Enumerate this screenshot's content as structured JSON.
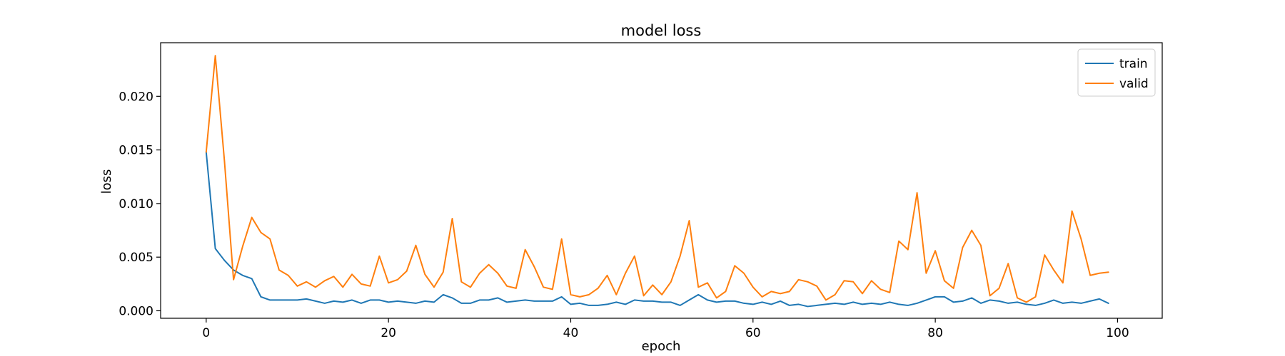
{
  "chart_data": {
    "type": "line",
    "title": "model loss",
    "xlabel": "epoch",
    "ylabel": "loss",
    "xlim": [
      -5,
      104.9
    ],
    "ylim": [
      -0.0007,
      0.025
    ],
    "xticks": [
      0,
      20,
      40,
      60,
      80,
      100
    ],
    "yticks": [
      0.0,
      0.005,
      0.01,
      0.015,
      0.02
    ],
    "xtick_labels": [
      "0",
      "20",
      "40",
      "60",
      "80",
      "100"
    ],
    "ytick_labels": [
      "0.000",
      "0.005",
      "0.010",
      "0.015",
      "0.020"
    ],
    "grid": false,
    "legend": "top-right",
    "x": [
      0,
      1,
      2,
      3,
      4,
      5,
      6,
      7,
      8,
      9,
      10,
      11,
      12,
      13,
      14,
      15,
      16,
      17,
      18,
      19,
      20,
      21,
      22,
      23,
      24,
      25,
      26,
      27,
      28,
      29,
      30,
      31,
      32,
      33,
      34,
      35,
      36,
      37,
      38,
      39,
      40,
      41,
      42,
      43,
      44,
      45,
      46,
      47,
      48,
      49,
      50,
      51,
      52,
      53,
      54,
      55,
      56,
      57,
      58,
      59,
      60,
      61,
      62,
      63,
      64,
      65,
      66,
      67,
      68,
      69,
      70,
      71,
      72,
      73,
      74,
      75,
      76,
      77,
      78,
      79,
      80,
      81,
      82,
      83,
      84,
      85,
      86,
      87,
      88,
      89,
      90,
      91,
      92,
      93,
      94,
      95,
      96,
      97,
      98,
      99
    ],
    "series": [
      {
        "name": "train",
        "color": "#1f77b4",
        "values": [
          0.0148,
          0.0058,
          0.0047,
          0.0038,
          0.0033,
          0.003,
          0.0013,
          0.001,
          0.001,
          0.001,
          0.001,
          0.0011,
          0.0009,
          0.0007,
          0.0009,
          0.0008,
          0.001,
          0.0007,
          0.001,
          0.001,
          0.0008,
          0.0009,
          0.0008,
          0.0007,
          0.0009,
          0.0008,
          0.0015,
          0.0012,
          0.0007,
          0.0007,
          0.001,
          0.001,
          0.0012,
          0.0008,
          0.0009,
          0.001,
          0.0009,
          0.0009,
          0.0009,
          0.0013,
          0.0006,
          0.0007,
          0.0005,
          0.0005,
          0.0006,
          0.0008,
          0.0006,
          0.001,
          0.0009,
          0.0009,
          0.0008,
          0.0008,
          0.0005,
          0.001,
          0.0015,
          0.001,
          0.0008,
          0.0009,
          0.0009,
          0.0007,
          0.0006,
          0.0008,
          0.0006,
          0.0009,
          0.0005,
          0.0006,
          0.0004,
          0.0005,
          0.0006,
          0.0007,
          0.0006,
          0.0008,
          0.0006,
          0.0007,
          0.0006,
          0.0008,
          0.0006,
          0.0005,
          0.0007,
          0.001,
          0.0013,
          0.0013,
          0.0008,
          0.0009,
          0.0012,
          0.0007,
          0.001,
          0.0009,
          0.0007,
          0.0008,
          0.0006,
          0.0005,
          0.0007,
          0.001,
          0.0007,
          0.0008,
          0.0007,
          0.0009,
          0.0011,
          0.0007
        ]
      },
      {
        "name": "valid",
        "color": "#ff7f0e",
        "values": [
          0.0148,
          0.0238,
          0.014,
          0.0029,
          0.006,
          0.0087,
          0.0073,
          0.0067,
          0.0038,
          0.0033,
          0.0023,
          0.0027,
          0.0022,
          0.0028,
          0.0032,
          0.0022,
          0.0034,
          0.0025,
          0.0023,
          0.0051,
          0.0026,
          0.0029,
          0.0037,
          0.0061,
          0.0034,
          0.0022,
          0.0036,
          0.0086,
          0.0027,
          0.0022,
          0.0035,
          0.0043,
          0.0035,
          0.0023,
          0.0021,
          0.0057,
          0.0041,
          0.0022,
          0.002,
          0.0067,
          0.0015,
          0.0013,
          0.0015,
          0.0021,
          0.0033,
          0.0015,
          0.0035,
          0.0051,
          0.0014,
          0.0024,
          0.0015,
          0.0027,
          0.0051,
          0.0084,
          0.0022,
          0.0026,
          0.0012,
          0.0018,
          0.0042,
          0.0035,
          0.0022,
          0.0013,
          0.0018,
          0.0016,
          0.0018,
          0.0029,
          0.0027,
          0.0023,
          0.001,
          0.0015,
          0.0028,
          0.0027,
          0.0016,
          0.0028,
          0.002,
          0.0017,
          0.0065,
          0.0057,
          0.011,
          0.0035,
          0.0056,
          0.0028,
          0.0021,
          0.0059,
          0.0075,
          0.0061,
          0.0014,
          0.0021,
          0.0044,
          0.0012,
          0.0008,
          0.0013,
          0.0052,
          0.0038,
          0.0026,
          0.0093,
          0.0067,
          0.0033,
          0.0035,
          0.0036
        ]
      }
    ]
  }
}
